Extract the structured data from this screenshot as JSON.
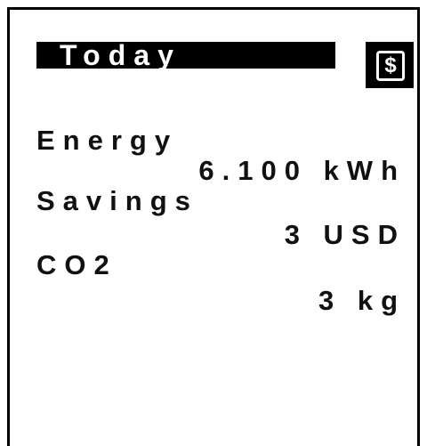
{
  "header": {
    "title": "Today",
    "icon": "$"
  },
  "rows": [
    {
      "label": "Energy",
      "value": "6.100 kWh"
    },
    {
      "label": "Savings",
      "value": "3 USD"
    },
    {
      "label": "CO2",
      "value": "3 kg"
    }
  ]
}
